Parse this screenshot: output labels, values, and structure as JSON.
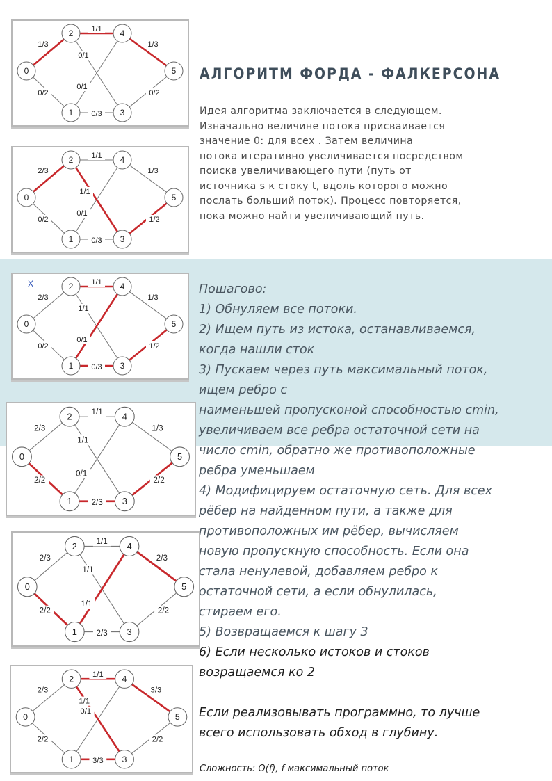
{
  "title": "АЛГОРИТМ ФОРДА - ФАЛКЕРСОНА",
  "intro_lines": [
    "Идея алгоритма заключается в следующем.",
    "Изначально величине потока присваивается",
    "значение 0:  для всех . Затем величина",
    "потока итеративно увеличивается посредством",
    "поиска увеличивающего пути (путь от",
    "источника s к стоку t, вдоль которого можно",
    "послать больший поток). Процесс повторяется,",
    "пока можно найти увеличивающий путь."
  ],
  "steps_lines": [
    "Пошагово:",
    "1) Обнуляем все потоки.",
    "2) Ищем  путь из истока, останавливаемся,",
    "когда нашли сток",
    "3) Пускаем через путь максимальный поток,",
    "ищем ребро с",
    "наименьшей пропусконой способностью cmin,",
    "  увеличиваем все ребра остаточной сети на",
    "число cmin, обратно же противоположные",
    "ребра уменьшаем",
    "4) Модифицируем остаточную сеть. Для всех",
    "рёбер на найденном пути, а также для",
    "противоположных им рёбер, вычисляем",
    "новую пропускную способность. Если она",
    "стала ненулевой, добавляем ребро к",
    "остаточной сети, а если обнулилась,",
    "стираем его.",
    "5) Возвращаемся к шагу 3",
    "6) Если несколько истоков и стоков",
    "возращаемся ко 2",
    "",
    "Если реализовывать программно, то лучше",
    "всего использовать обход в глубину."
  ],
  "complexity": "Сложность: O(f), f максимальный поток",
  "colors": {
    "band": "#d5e8ec",
    "highlight": "#c8282c",
    "title": "#3f4e5b"
  },
  "nodes": [
    "0",
    "1",
    "2",
    "3",
    "4",
    "5"
  ],
  "figures": [
    {
      "id": "fig1",
      "labels": {
        "e02": "1/3",
        "e01": "0/2",
        "e24": "1/1",
        "e21": "0/1",
        "e13": "0/3",
        "e14": "0/1",
        "e23": "",
        "e45": "1/3",
        "e35": "0/2"
      },
      "red": [
        "e02",
        "e24",
        "e45"
      ],
      "mark": ""
    },
    {
      "id": "fig2",
      "labels": {
        "e02": "2/3",
        "e01": "0/2",
        "e24": "1/1",
        "e21": "",
        "e13": "0/3",
        "e14": "0/1",
        "e23": "1/1",
        "e45": "1/3",
        "e35": "1/2"
      },
      "red": [
        "e02",
        "e23",
        "e35"
      ],
      "mark": ""
    },
    {
      "id": "fig3",
      "labels": {
        "e02": "2/3",
        "e01": "0/2",
        "e24": "1/1",
        "e21": "1/1",
        "e13": "0/3",
        "e14": "0/1",
        "e23": "",
        "e45": "1/3",
        "e35": "1/2"
      },
      "red": [
        "e24",
        "e14",
        "e13",
        "e35"
      ],
      "mark": "X"
    },
    {
      "id": "fig4",
      "labels": {
        "e02": "2/3",
        "e01": "2/2",
        "e24": "1/1",
        "e21": "1/1",
        "e13": "2/3",
        "e14": "0/1",
        "e23": "",
        "e45": "1/3",
        "e35": "2/2"
      },
      "red": [
        "e01",
        "e13",
        "e35"
      ],
      "mark": ""
    },
    {
      "id": "fig5",
      "labels": {
        "e02": "2/3",
        "e01": "2/2",
        "e24": "1/1",
        "e21": "1/1",
        "e13": "2/3",
        "e14": "1/1",
        "e23": "",
        "e45": "2/3",
        "e35": "2/2"
      },
      "red": [
        "e01",
        "e14",
        "e45"
      ],
      "mark": ""
    },
    {
      "id": "fig6",
      "labels": {
        "e02": "2/3",
        "e01": "2/2",
        "e24": "1/1",
        "e21": "1/1",
        "e13": "3/3",
        "e14": "",
        "e23": "0/1",
        "e45": "3/3",
        "e35": "2/2"
      },
      "red": [
        "e24",
        "e45",
        "e23",
        "e13"
      ],
      "mark": ""
    }
  ]
}
